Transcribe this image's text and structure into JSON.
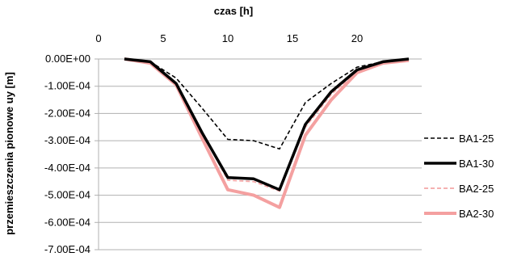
{
  "chart_data": {
    "type": "line",
    "xlabel": "czas [h]",
    "ylabel": "przemieszczenia pionowe uy [m]",
    "xlim": [
      0,
      25
    ],
    "ylim": [
      -0.0007,
      0
    ],
    "x_axis_position": "top",
    "xticks": [
      "0",
      "5",
      "10",
      "15",
      "20"
    ],
    "yticks": [
      "0.00E+00",
      "-1.00E-04",
      "-2.00E-04",
      "-3.00E-04",
      "-4.00E-04",
      "-5.00E-04",
      "-6.00E-04",
      "-7.00E-04"
    ],
    "grid": "horizontal",
    "legend_position": "right",
    "x": [
      2,
      4,
      6,
      8,
      10,
      12,
      14,
      16,
      18,
      20,
      22,
      24
    ],
    "series": [
      {
        "name": "BA1-25",
        "color": "#000000",
        "style": "dashed",
        "values": [
          0,
          -1e-05,
          -7e-05,
          -0.00018,
          -0.000295,
          -0.0003,
          -0.00033,
          -0.00016,
          -9e-05,
          -3e-05,
          -1e-05,
          0
        ]
      },
      {
        "name": "BA1-30",
        "color": "#000000",
        "style": "solid-thick",
        "values": [
          0,
          -1e-05,
          -9e-05,
          -0.00027,
          -0.000435,
          -0.00044,
          -0.00048,
          -0.00024,
          -0.00012,
          -4e-05,
          -1e-05,
          0
        ]
      },
      {
        "name": "BA2-25",
        "color": "#f4a6a6",
        "style": "dashed",
        "values": [
          0,
          -1e-05,
          -9e-05,
          -0.00027,
          -0.000445,
          -0.00045,
          -0.000485,
          -0.00025,
          -0.00013,
          -4.5e-05,
          -1e-05,
          0
        ]
      },
      {
        "name": "BA2-30",
        "color": "#f4a0a0",
        "style": "solid-thick",
        "values": [
          0,
          -1.5e-05,
          -9.5e-05,
          -0.00029,
          -0.00048,
          -0.0005,
          -0.000545,
          -0.00028,
          -0.00015,
          -5e-05,
          -1.5e-05,
          -5e-06
        ]
      }
    ]
  }
}
